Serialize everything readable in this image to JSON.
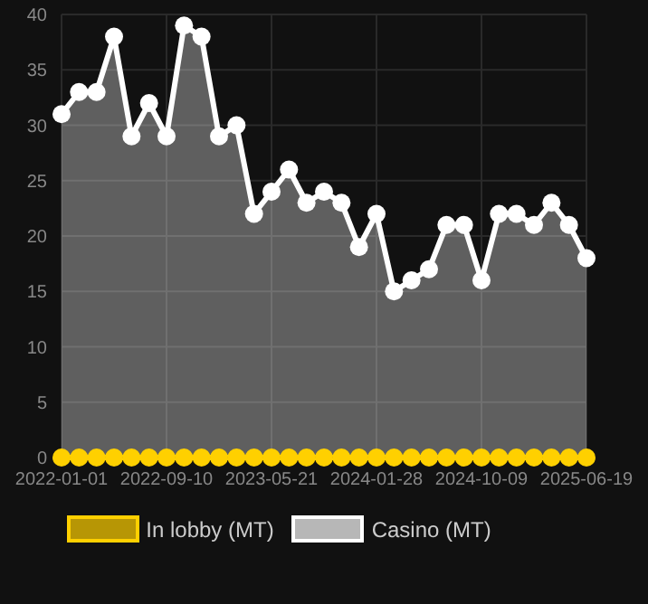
{
  "chart_data": {
    "type": "area",
    "categories": [
      "2022-01-01",
      null,
      null,
      null,
      null,
      null,
      "2022-09-10",
      null,
      null,
      null,
      null,
      null,
      "2023-05-21",
      null,
      null,
      null,
      null,
      null,
      "2024-01-28",
      null,
      null,
      null,
      null,
      null,
      "2024-10-09",
      null,
      null,
      null,
      null,
      null,
      "2025-06-19"
    ],
    "series": [
      {
        "name": "In lobby (MT)",
        "type": "line",
        "color": "#ffd000",
        "values": [
          0,
          0,
          0,
          0,
          0,
          0,
          0,
          0,
          0,
          0,
          0,
          0,
          0,
          0,
          0,
          0,
          0,
          0,
          0,
          0,
          0,
          0,
          0,
          0,
          0,
          0,
          0,
          0,
          0,
          0,
          0
        ]
      },
      {
        "name": "Casino (MT)",
        "color": "#ffffff",
        "values": [
          31,
          33,
          33,
          38,
          29,
          32,
          29,
          39,
          38,
          29,
          30,
          22,
          24,
          26,
          23,
          24,
          23,
          19,
          22,
          15,
          16,
          17,
          21,
          21,
          16,
          22,
          22,
          21,
          23,
          21,
          18
        ]
      }
    ],
    "ylim": [
      0,
      40
    ],
    "yticks": [
      0,
      5,
      10,
      15,
      20,
      25,
      30,
      35,
      40
    ],
    "grid": true,
    "legend": "bottom",
    "marker": "circle"
  }
}
